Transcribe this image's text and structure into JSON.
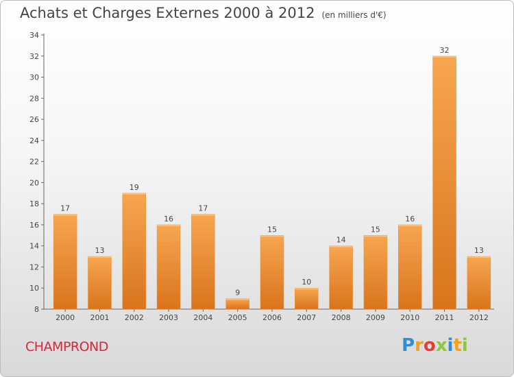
{
  "header": {
    "title": "Achats et Charges Externes 2000 à 2012",
    "subtitle": "(en milliers d'€)"
  },
  "footer": {
    "town": "CHAMPROND",
    "logo_text": "Proxiti",
    "logo_letters": [
      "P",
      "r",
      "o",
      "x",
      "i",
      "t",
      "i"
    ],
    "logo_colors": [
      "#2e8fd6",
      "#f2a020",
      "#e43d33",
      "#8dc63f",
      "#2e8fd6",
      "#f2a020",
      "#8dc63f"
    ]
  },
  "colors": {
    "bar_light": "#f7a650",
    "bar_dark": "#d9741c",
    "axis": "#666666",
    "grid": "#ffffff"
  },
  "chart_data": {
    "type": "bar",
    "title": "Achats et Charges Externes 2000 à 2012",
    "subtitle": "(en milliers d'€)",
    "categories": [
      "2000",
      "2001",
      "2002",
      "2003",
      "2004",
      "2005",
      "2006",
      "2007",
      "2008",
      "2009",
      "2010",
      "2011",
      "2012"
    ],
    "values": [
      17,
      13,
      19,
      16,
      17,
      9,
      15,
      10,
      14,
      15,
      16,
      32,
      13
    ],
    "ylim": [
      8,
      34
    ],
    "yticks": [
      8,
      10,
      12,
      14,
      16,
      18,
      20,
      22,
      24,
      26,
      28,
      30,
      32,
      34
    ],
    "xlabel": "",
    "ylabel": "",
    "grid": false,
    "legend": "none"
  }
}
